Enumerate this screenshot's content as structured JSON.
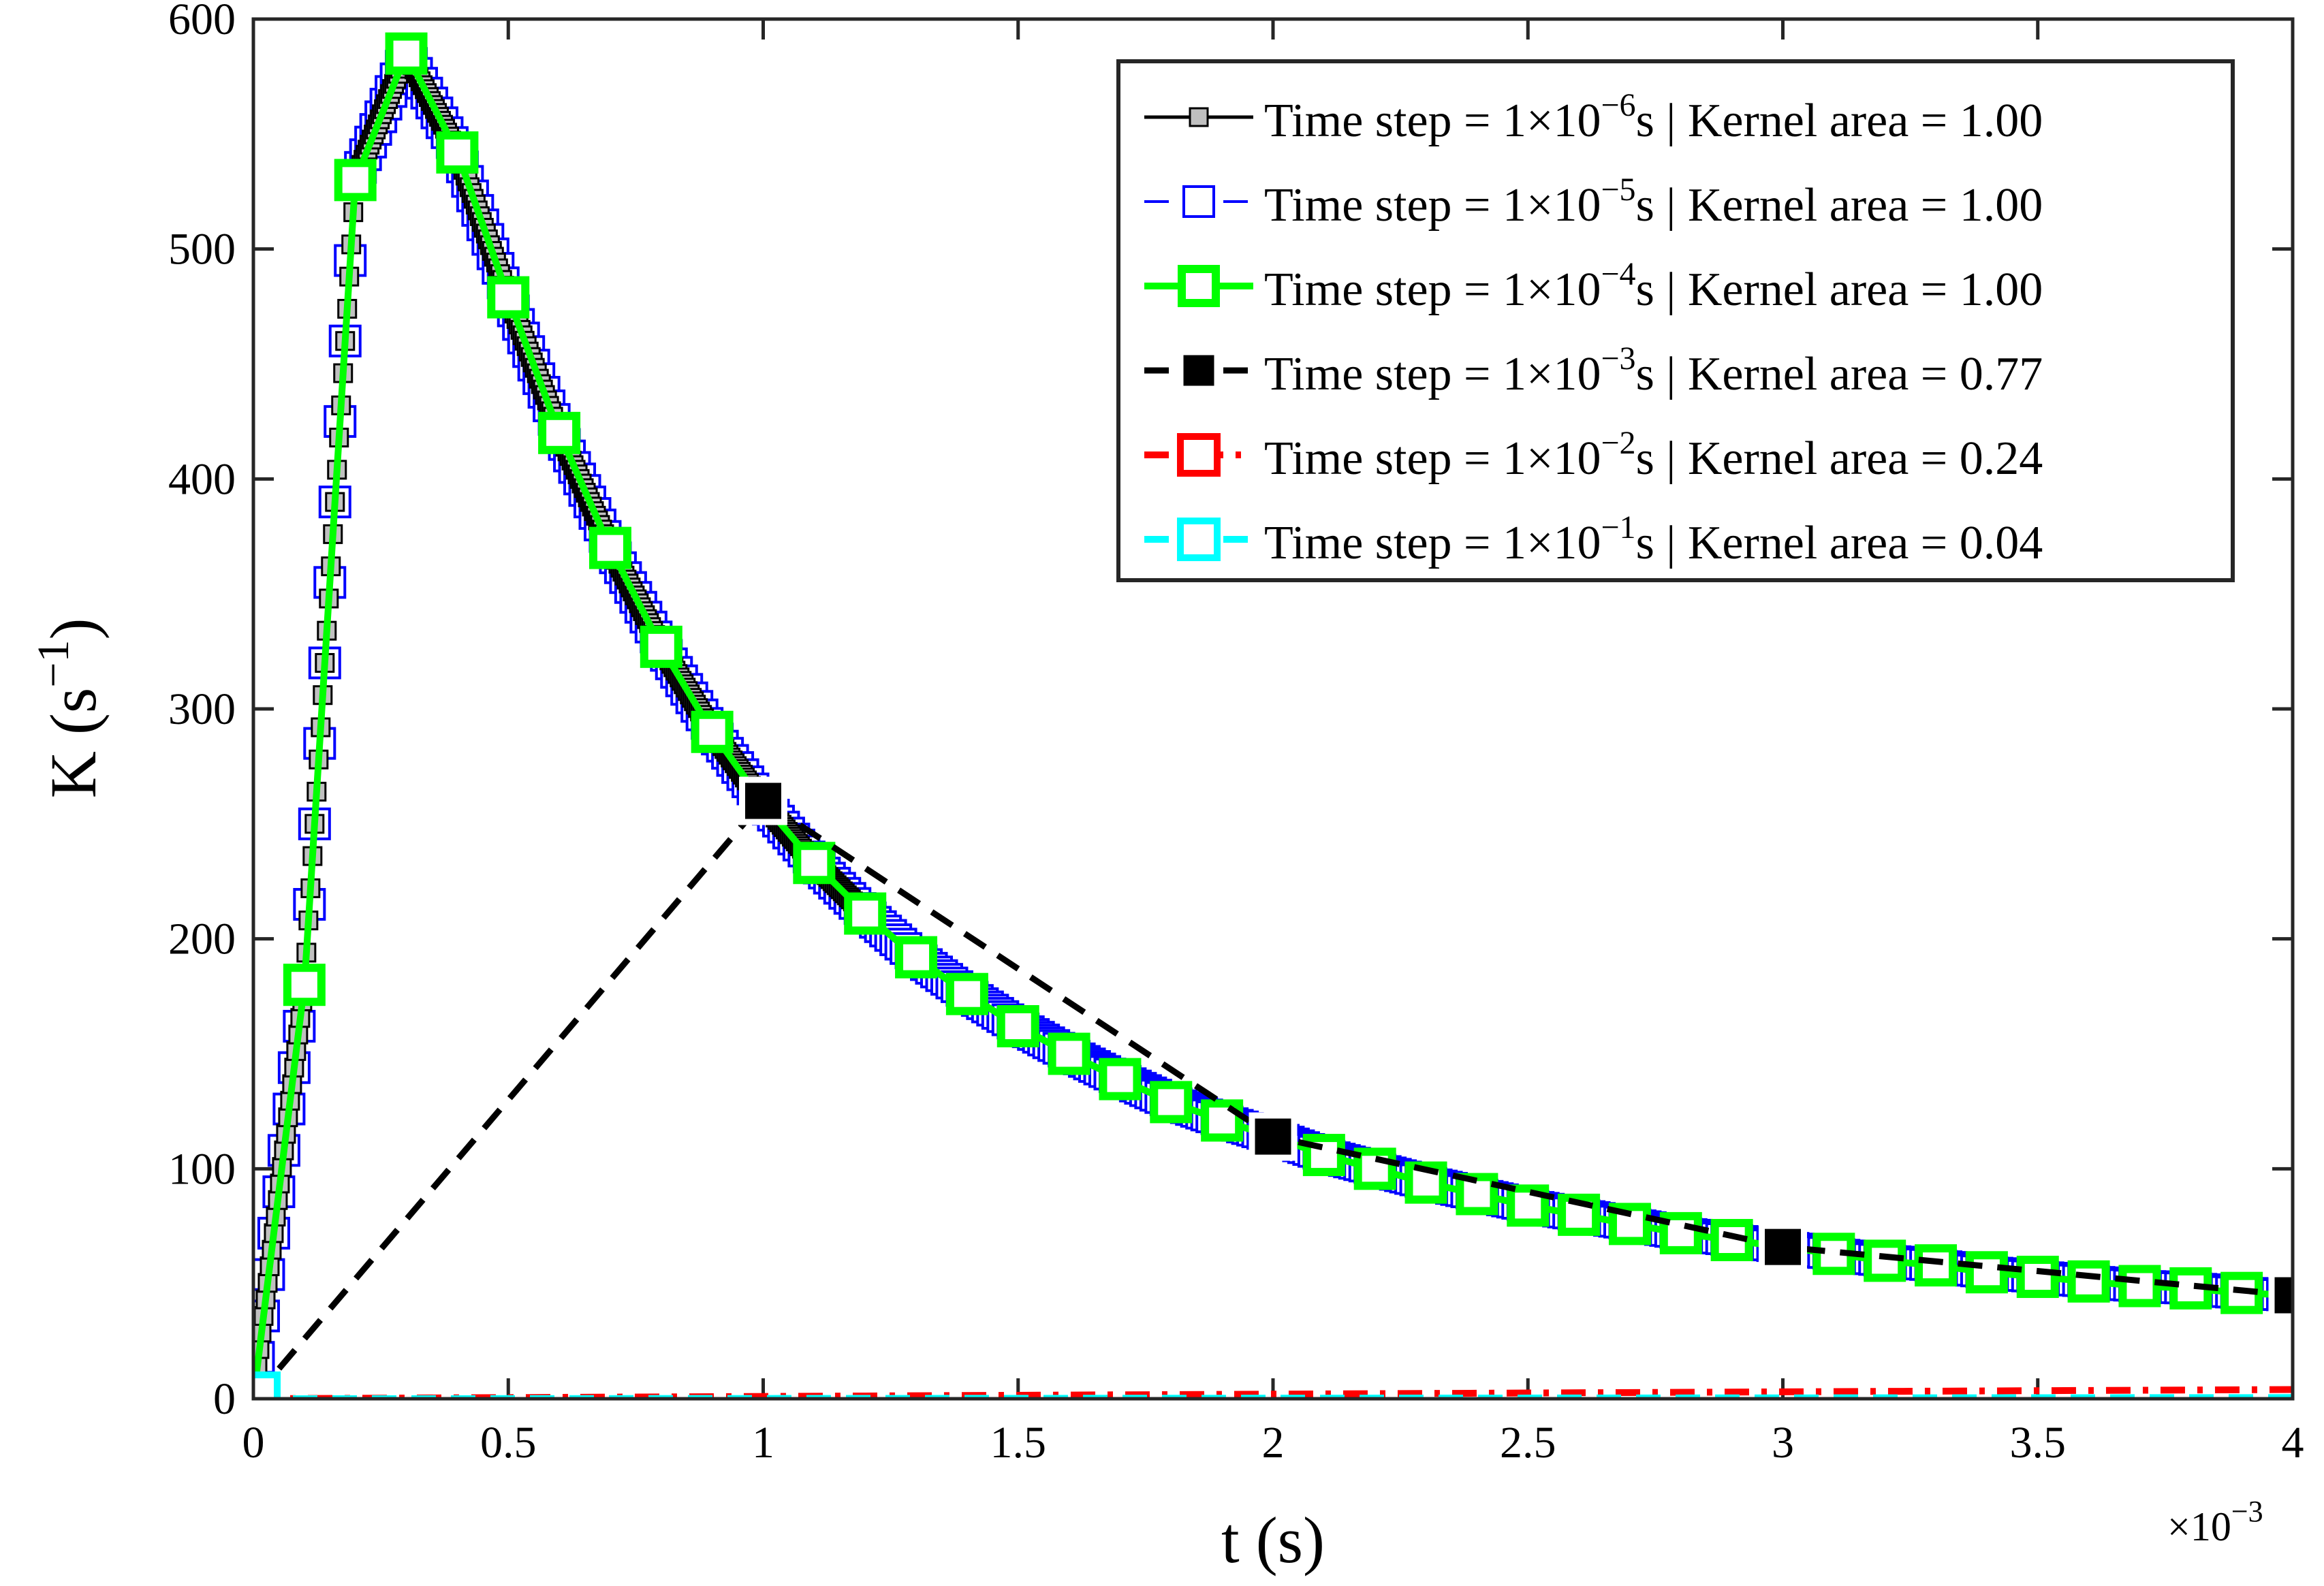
{
  "chart_data": {
    "type": "line",
    "xlabel": "t (s)",
    "ylabel_base": "K (s",
    "ylabel_exp": "−1",
    "ylabel_close": ")",
    "x_exponent_label": "×10",
    "x_exponent_power": "−3",
    "xlim": [
      0,
      0.004
    ],
    "ylim": [
      0,
      600
    ],
    "xticks": [
      0,
      0.0005,
      0.001,
      0.0015,
      0.002,
      0.0025,
      0.003,
      0.0035,
      0.004
    ],
    "xtick_labels": [
      "0",
      "0.5",
      "1",
      "1.5",
      "2",
      "2.5",
      "3",
      "3.5",
      "4"
    ],
    "yticks": [
      0,
      100,
      200,
      300,
      400,
      500,
      600
    ],
    "ytick_labels": [
      "0",
      "100",
      "200",
      "300",
      "400",
      "500",
      "600"
    ],
    "legend_position": "top-right",
    "series": [
      {
        "name": "Time step = 1×10^-6 s | Kernel area = 1.00",
        "legend_pre": "Time step = 1×10",
        "legend_exp": "−6",
        "legend_post": "s | Kernel area = 1.00",
        "time_step": 1e-06,
        "kernel_area": "1.00",
        "color": "#000000",
        "marker_face": "#c0c0c0",
        "marker_edge": "#000000",
        "line_style": "solid",
        "model": "exact"
      },
      {
        "name": "Time step = 1×10^-5 s | Kernel area = 1.00",
        "legend_pre": "Time step = 1×10",
        "legend_exp": "−5",
        "legend_post": "s | Kernel area = 1.00",
        "time_step": 1e-05,
        "kernel_area": "1.00",
        "color": "#0000ff",
        "marker_face": "#ffffff",
        "marker_edge": "#0000ff",
        "line_style": "dashed",
        "model": "exact"
      },
      {
        "name": "Time step = 1×10^-4 s | Kernel area = 1.00",
        "legend_pre": "Time step = 1×10",
        "legend_exp": "−4",
        "legend_post": "s | Kernel area = 1.00",
        "time_step": 0.0001,
        "kernel_area": "1.00",
        "color": "#00ff00",
        "marker_face": "#ffffff",
        "marker_edge": "#00ff00",
        "line_style": "solid",
        "model": "exact"
      },
      {
        "name": "Time step = 1×10^-3 s | Kernel area = 0.77",
        "legend_pre": "Time step = 1×10",
        "legend_exp": "−3",
        "legend_post": "s | Kernel area = 0.77",
        "time_step": 0.001,
        "kernel_area": "0.77",
        "color": "#000000",
        "marker_face": "#000000",
        "marker_edge": "#ffffff",
        "line_style": "dashed",
        "x": [
          0,
          0.001,
          0.002,
          0.003,
          0.004
        ],
        "y": [
          0,
          260,
          114,
          66,
          45
        ]
      },
      {
        "name": "Time step = 1×10^-2 s | Kernel area = 0.24",
        "legend_pre": "Time step = 1×10",
        "legend_exp": "−2",
        "legend_post": "s | Kernel area = 0.24",
        "time_step": 0.01,
        "kernel_area": "0.24",
        "color": "#ff0000",
        "marker_face": "#ffffff",
        "marker_edge": "#ff0000",
        "line_style": "dashdot",
        "x": [
          0,
          0.004
        ],
        "y": [
          0,
          4
        ]
      },
      {
        "name": "Time step = 1×10^-1 s | Kernel area = 0.04",
        "legend_pre": "Time step = 1×10",
        "legend_exp": "−1",
        "legend_post": "s | Kernel area = 0.04",
        "time_step": 0.1,
        "kernel_area": "0.04",
        "color": "#00ffff",
        "marker_face": "#ffffff",
        "marker_edge": "#00ffff",
        "line_style": "dashed",
        "x": [
          0,
          0.004
        ],
        "y": [
          0,
          0.5
        ]
      }
    ],
    "exact_curve": {
      "x": [
        0,
        0.0001,
        0.0002,
        0.0003,
        0.0004,
        0.0005,
        0.0006,
        0.0007,
        0.0008,
        0.0009,
        0.001,
        0.0011,
        0.0012,
        0.0013,
        0.0014,
        0.0015,
        0.0016,
        0.0017,
        0.0018,
        0.0019,
        0.002,
        0.0021,
        0.0022,
        0.0023,
        0.0024,
        0.0025,
        0.0026,
        0.0027,
        0.0028,
        0.0029,
        0.003,
        0.0031,
        0.0032,
        0.0033,
        0.0034,
        0.0035,
        0.0036,
        0.0037,
        0.0038,
        0.0039,
        0.004
      ],
      "y": [
        0,
        180,
        530,
        585,
        542,
        479,
        420,
        370,
        327,
        290,
        259,
        233,
        211,
        192,
        176,
        162,
        150,
        139,
        129,
        121,
        114,
        106,
        100,
        94,
        89,
        84,
        80,
        76,
        72,
        69,
        66,
        63,
        60,
        58,
        55,
        53,
        51,
        49,
        48,
        46,
        45
      ]
    }
  }
}
